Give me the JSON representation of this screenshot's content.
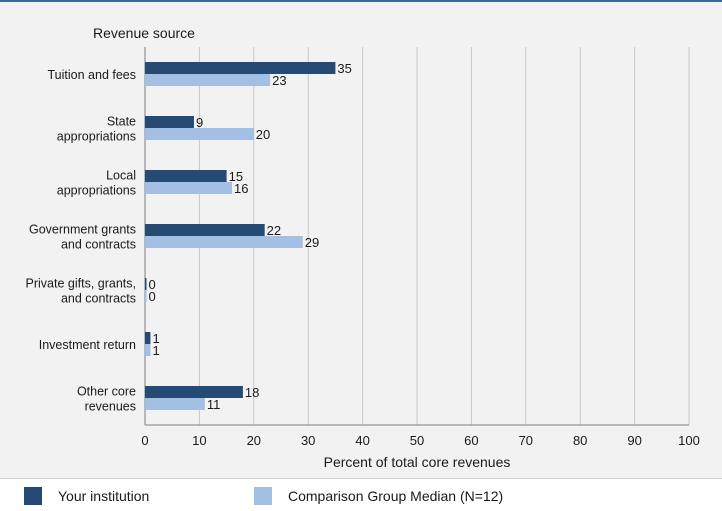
{
  "chart_data": {
    "type": "bar",
    "orientation": "horizontal",
    "title": "Revenue source",
    "xlabel": "Percent of total core revenues",
    "categories": [
      [
        "Tuition and fees"
      ],
      [
        "State",
        "appropriations"
      ],
      [
        "Local",
        "appropriations"
      ],
      [
        "Government grants",
        "and contracts"
      ],
      [
        "Private gifts, grants,",
        "and contracts"
      ],
      [
        "Investment return"
      ],
      [
        "Other core",
        "revenues"
      ]
    ],
    "series": [
      {
        "name": "Your institution",
        "color": "#254a74",
        "values": [
          35,
          9,
          15,
          22,
          0,
          1,
          18
        ]
      },
      {
        "name": "Comparison Group Median (N=12)",
        "color": "#a3bfe3",
        "values": [
          23,
          20,
          16,
          29,
          0,
          1,
          11
        ]
      }
    ],
    "xlim": [
      0,
      100
    ],
    "xticks": [
      0,
      10,
      20,
      30,
      40,
      50,
      60,
      70,
      80,
      90,
      100
    ],
    "grid": true,
    "legend_position": "bottom"
  }
}
